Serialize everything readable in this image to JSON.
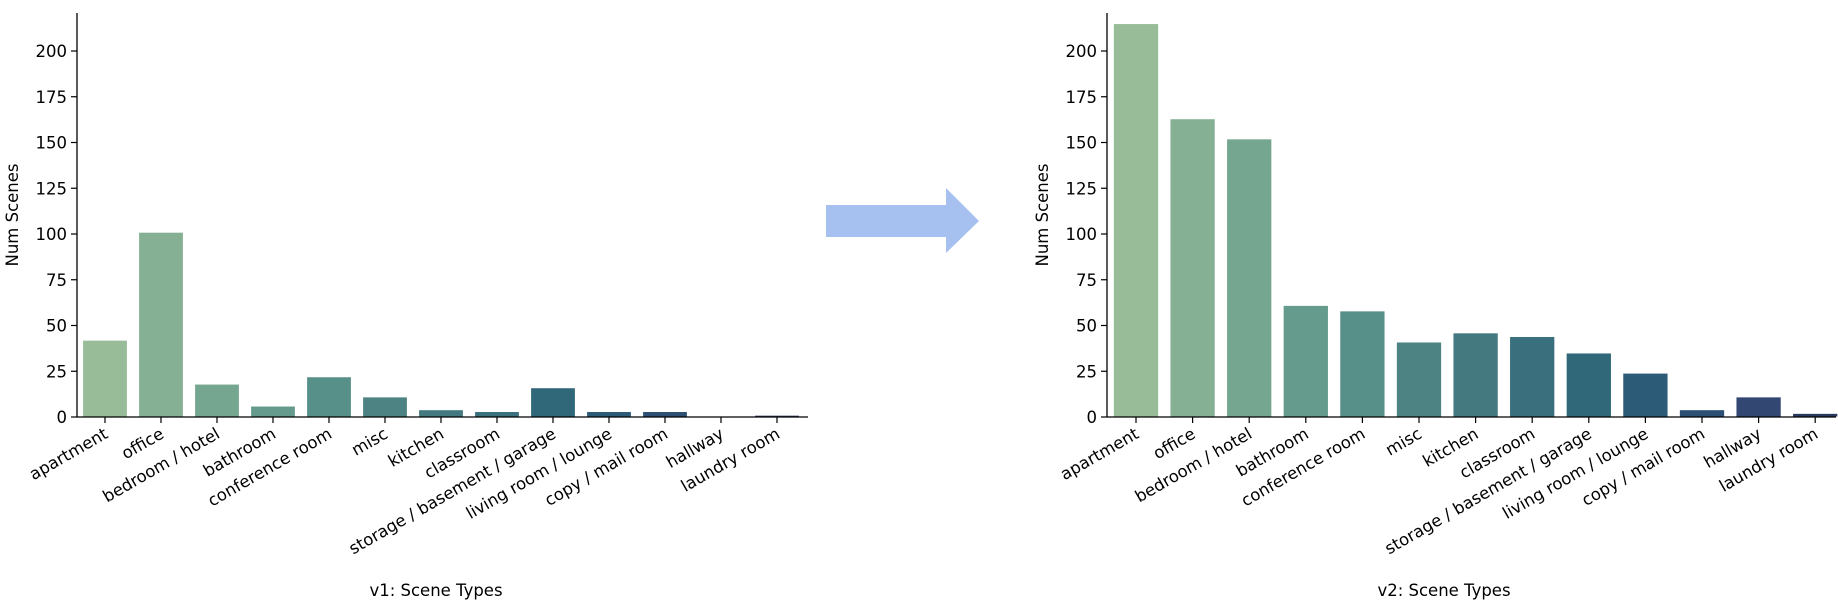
{
  "arrow_color": "#a6c1f0",
  "chart_data": [
    {
      "type": "bar",
      "xlabel": "v1: Scene Types",
      "ylabel": "Num Scenes",
      "ylim": [
        0,
        220
      ],
      "yticks": [
        0,
        25,
        50,
        75,
        100,
        125,
        150,
        175,
        200
      ],
      "grid": false,
      "categories": [
        "apartment",
        "office",
        "bedroom / hotel",
        "bathroom",
        "conference room",
        "misc",
        "kitchen",
        "classroom",
        "storage / basement / garage",
        "living room / lounge",
        "copy / mail room",
        "hallway",
        "laundry room"
      ],
      "values": [
        42,
        101,
        18,
        6,
        22,
        11,
        4,
        3,
        16,
        3,
        3,
        0,
        1
      ],
      "colors": [
        "#98bc97",
        "#86b094",
        "#75a690",
        "#659b8c",
        "#578f89",
        "#4d8483",
        "#43797f",
        "#3a707d",
        "#306779",
        "#2c5b78",
        "#2d4f74",
        "#324771",
        "#2a3a5e"
      ]
    },
    {
      "type": "bar",
      "xlabel": "v2: Scene Types",
      "ylabel": "Num Scenes",
      "ylim": [
        0,
        220
      ],
      "yticks": [
        0,
        25,
        50,
        75,
        100,
        125,
        150,
        175,
        200
      ],
      "grid": false,
      "categories": [
        "apartment",
        "office",
        "bedroom / hotel",
        "bathroom",
        "conference room",
        "misc",
        "kitchen",
        "classroom",
        "storage / basement / garage",
        "living room / lounge",
        "copy / mail room",
        "hallway",
        "laundry room"
      ],
      "values": [
        215,
        163,
        152,
        61,
        58,
        41,
        46,
        44,
        35,
        24,
        4,
        11,
        2
      ],
      "colors": [
        "#98bc97",
        "#86b094",
        "#75a690",
        "#659b8c",
        "#578f89",
        "#4d8483",
        "#43797f",
        "#3a707d",
        "#306779",
        "#2c5b78",
        "#2d4f74",
        "#324771",
        "#2a3a5e"
      ]
    }
  ]
}
